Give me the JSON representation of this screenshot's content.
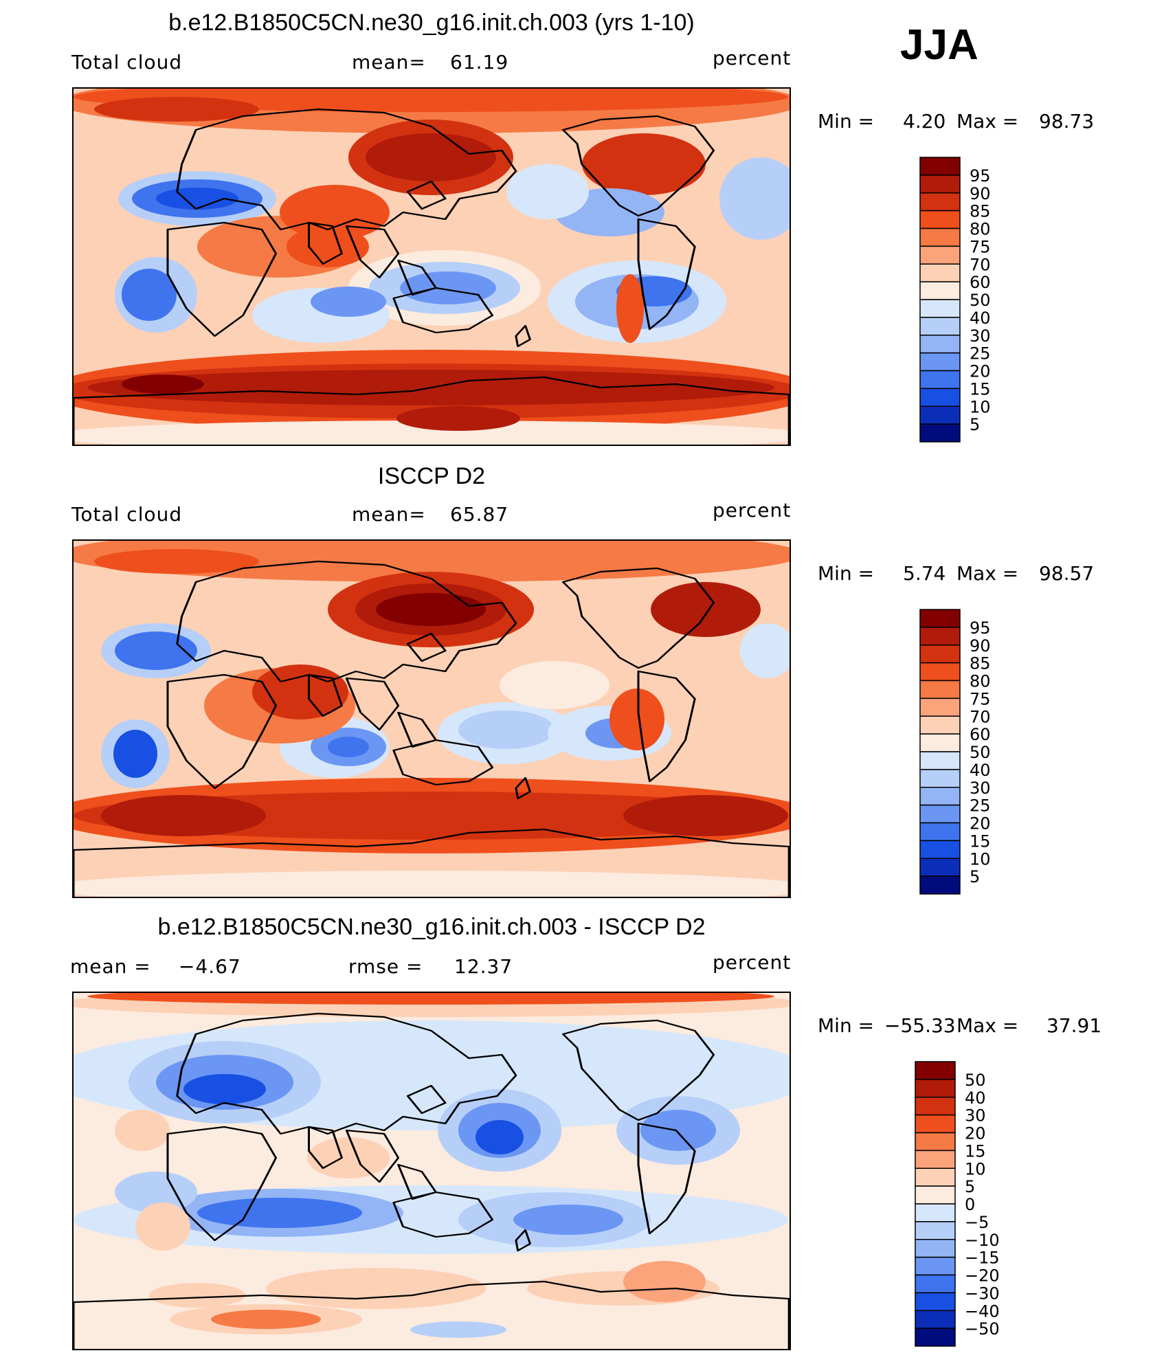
{
  "season": "JJA",
  "panels": [
    {
      "title": "b.e12.B1850C5CN.ne30_g16.init.ch.003 (yrs 1-10)",
      "left_label": "Total cloud",
      "stat_label": "mean=",
      "stat_value": "61.19",
      "units": "percent",
      "min_label": "Min =",
      "min_value": "4.20",
      "max_label": "Max =",
      "max_value": "98.73",
      "colorbar": {
        "labels": [
          "95",
          "90",
          "85",
          "80",
          "75",
          "70",
          "60",
          "50",
          "40",
          "30",
          "25",
          "20",
          "15",
          "10",
          "5"
        ],
        "colors": [
          "#820000",
          "#b01b0a",
          "#d33210",
          "#ef4f1c",
          "#f57a45",
          "#fba47c",
          "#fdd1b6",
          "#fcebdf",
          "#d6e7fb",
          "#b6cff8",
          "#93b5f6",
          "#6b96f3",
          "#3f74ee",
          "#1850e3",
          "#0a2eb8",
          "#000c7d"
        ]
      }
    },
    {
      "title": "ISCCP D2",
      "left_label": "Total cloud",
      "stat_label": "mean=",
      "stat_value": "65.87",
      "units": "percent",
      "min_label": "Min =",
      "min_value": "5.74",
      "max_label": "Max =",
      "max_value": "98.57",
      "colorbar": {
        "labels": [
          "95",
          "90",
          "85",
          "80",
          "75",
          "70",
          "60",
          "50",
          "40",
          "30",
          "25",
          "20",
          "15",
          "10",
          "5"
        ],
        "colors": [
          "#820000",
          "#b01b0a",
          "#d33210",
          "#ef4f1c",
          "#f57a45",
          "#fba47c",
          "#fdd1b6",
          "#fcebdf",
          "#d6e7fb",
          "#b6cff8",
          "#93b5f6",
          "#6b96f3",
          "#3f74ee",
          "#1850e3",
          "#0a2eb8",
          "#000c7d"
        ]
      }
    },
    {
      "title": "b.e12.B1850C5CN.ne30_g16.init.ch.003 - ISCCP D2",
      "left_label": "mean =",
      "left_value": "−4.67",
      "stat_label": "rmse =",
      "stat_value": "12.37",
      "units": "percent",
      "min_label": "Min =",
      "min_value": "−55.33",
      "max_label": "Max =",
      "max_value": "37.91",
      "colorbar": {
        "labels": [
          "50",
          "40",
          "30",
          "20",
          "15",
          "10",
          "5",
          "0",
          "−5",
          "−10",
          "−15",
          "−20",
          "−30",
          "−40",
          "−50"
        ],
        "colors": [
          "#820000",
          "#b01b0a",
          "#d33210",
          "#ef4f1c",
          "#f57a45",
          "#fba47c",
          "#fdd1b6",
          "#fcebdf",
          "#d6e7fb",
          "#b6cff8",
          "#93b5f6",
          "#6b96f3",
          "#3f74ee",
          "#1850e3",
          "#0a2eb8",
          "#000c7d"
        ]
      }
    }
  ]
}
